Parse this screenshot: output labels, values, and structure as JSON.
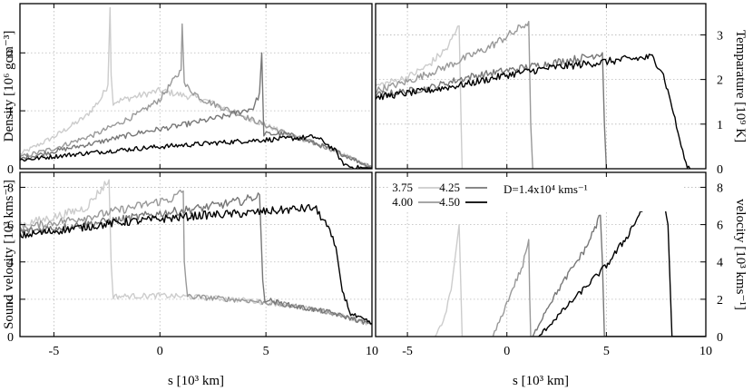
{
  "chart_data": {
    "type": "line",
    "layout": "2x2 panels, shared x axis",
    "series_styles": [
      {
        "label": "3.75",
        "color": "#cccccc"
      },
      {
        "label": "4.00",
        "color": "#999999"
      },
      {
        "label": "4.25",
        "color": "#777777"
      },
      {
        "label": "4.50",
        "color": "#000000"
      }
    ],
    "legend": {
      "placement": "top of bottom-right panel",
      "entries": [
        "3.75",
        "4.00",
        "4.25",
        "4.50"
      ],
      "note": "D=1.4x10⁴ kms⁻¹"
    },
    "xaxis": {
      "label": "s [10³ km]",
      "range": [
        -6.6,
        10
      ],
      "ticks": [
        -5,
        0,
        5,
        10
      ],
      "tick_labels": [
        "-5",
        "0",
        "5",
        "10"
      ]
    },
    "grid": "dotted, on",
    "panels": [
      {
        "id": "density",
        "position": "top-left",
        "ylabel": "Density [10⁶ gcm⁻³]",
        "y_axis_side": "left",
        "ylim": [
          0,
          2.85
        ],
        "yticks": [
          0,
          1,
          2
        ],
        "ytick_labels": [
          "0",
          "1",
          "2"
        ],
        "series": [
          {
            "label": "3.75",
            "x": [
              -6.6,
              -5,
              -3.5,
              -2.8,
              -2.45,
              -2.35,
              -2.3,
              -2.2,
              0,
              2,
              4,
              6,
              8,
              10
            ],
            "y": [
              0.25,
              0.55,
              0.9,
              1.2,
              1.45,
              2.78,
              1.6,
              1.15,
              1.35,
              1.2,
              0.9,
              0.6,
              0.35,
              0.02
            ]
          },
          {
            "label": "4.00",
            "x": [
              -6.6,
              -5,
              -3,
              -1,
              0,
              0.6,
              1,
              1.05,
              1.15,
              2,
              4,
              6,
              8,
              10
            ],
            "y": [
              0.2,
              0.35,
              0.6,
              0.95,
              1.2,
              1.5,
              1.7,
              2.5,
              1.45,
              1.2,
              0.9,
              0.6,
              0.35,
              0.02
            ]
          },
          {
            "label": "4.25",
            "x": [
              -6.6,
              -5,
              -3,
              -1,
              1,
              3,
              4.4,
              4.7,
              4.8,
              4.9,
              6,
              8,
              10
            ],
            "y": [
              0.17,
              0.3,
              0.45,
              0.62,
              0.75,
              0.9,
              1.05,
              1.3,
              2.0,
              0.6,
              0.6,
              0.35,
              0.02
            ]
          },
          {
            "label": "4.50",
            "x": [
              -6.6,
              -4,
              -2,
              0,
              2,
              4,
              6,
              7.3,
              7.8,
              8.3,
              8.6,
              9,
              10
            ],
            "y": [
              0.15,
              0.25,
              0.32,
              0.38,
              0.43,
              0.48,
              0.52,
              0.55,
              0.45,
              0.3,
              0.1,
              0.03,
              0.01
            ]
          }
        ]
      },
      {
        "id": "temperature",
        "position": "top-right",
        "ylabel": "Temparature [10⁹ K]",
        "y_axis_side": "right",
        "ylim": [
          0,
          3.7
        ],
        "yticks": [
          0,
          1,
          2,
          3
        ],
        "ytick_labels": [
          "0",
          "1",
          "2",
          "3"
        ],
        "series": [
          {
            "label": "3.75",
            "x": [
              -6.6,
              -5,
              -4,
              -3,
              -2.4,
              -2.3,
              -2.25
            ],
            "y": [
              1.85,
              2.05,
              2.3,
              2.7,
              3.2,
              1.0,
              0
            ]
          },
          {
            "label": "4.00",
            "x": [
              -6.6,
              -5,
              -3,
              -1,
              0.5,
              1.1,
              1.2,
              1.3
            ],
            "y": [
              1.75,
              1.95,
              2.3,
              2.7,
              3.1,
              3.3,
              1.0,
              0
            ]
          },
          {
            "label": "4.25",
            "x": [
              -6.6,
              -4,
              -2,
              0,
              2,
              4,
              4.8,
              4.9,
              5.0
            ],
            "y": [
              1.65,
              1.8,
              2.05,
              2.2,
              2.35,
              2.5,
              2.6,
              1.0,
              0
            ]
          },
          {
            "label": "4.50",
            "x": [
              -6.6,
              -4,
              -2,
              0,
              2,
              4,
              6,
              7.3,
              7.8,
              8.3,
              8.6,
              9.0,
              9.2
            ],
            "y": [
              1.6,
              1.75,
              1.9,
              2.1,
              2.25,
              2.35,
              2.45,
              2.5,
              2.2,
              1.4,
              0.8,
              0.1,
              0
            ]
          }
        ]
      },
      {
        "id": "sound_velocity",
        "position": "bottom-left",
        "ylabel": "Sound velocity [10³ kms⁻¹]",
        "y_axis_side": "left",
        "ylim": [
          0,
          8.8
        ],
        "yticks": [
          0,
          2,
          4,
          6,
          8
        ],
        "ytick_labels": [
          "0",
          "2",
          "4",
          "6",
          "8"
        ],
        "series": [
          {
            "label": "3.75",
            "x": [
              -6.6,
              -5,
              -3.5,
              -2.4,
              -2.3,
              -2.2,
              0,
              2,
              4,
              6,
              8,
              10
            ],
            "y": [
              6.0,
              6.4,
              6.9,
              8.4,
              4.0,
              2.15,
              2.2,
              2.1,
              1.95,
              1.7,
              1.3,
              0.65
            ]
          },
          {
            "label": "4.00",
            "x": [
              -6.6,
              -5,
              -3,
              -1,
              0.6,
              1.1,
              1.15,
              1.3,
              2,
              4,
              6,
              8,
              10
            ],
            "y": [
              5.8,
              6.1,
              6.5,
              7.0,
              7.4,
              7.8,
              4.0,
              2.15,
              2.1,
              1.95,
              1.7,
              1.3,
              0.65
            ]
          },
          {
            "label": "4.25",
            "x": [
              -6.6,
              -4,
              -2,
              0,
              2,
              4,
              4.7,
              4.85,
              4.95,
              6,
              8,
              10
            ],
            "y": [
              5.6,
              5.95,
              6.25,
              6.6,
              6.9,
              7.3,
              7.6,
              3.0,
              2.0,
              1.7,
              1.3,
              0.65
            ]
          },
          {
            "label": "4.50",
            "x": [
              -6.6,
              -4,
              -2,
              0,
              2,
              4,
              6,
              7.3,
              7.8,
              8.3,
              8.6,
              9.0,
              10
            ],
            "y": [
              5.4,
              5.8,
              6.1,
              6.3,
              6.5,
              6.6,
              6.8,
              6.9,
              6.1,
              4.8,
              2.5,
              1.2,
              0.7
            ]
          }
        ]
      },
      {
        "id": "velocity",
        "position": "bottom-right",
        "ylabel": "velocity [10³ kms⁻¹]",
        "y_axis_side": "right",
        "ylim": [
          0,
          8.8
        ],
        "yticks": [
          0,
          2,
          4,
          6,
          8
        ],
        "ytick_labels": [
          "0",
          "2",
          "4",
          "6",
          "8"
        ],
        "series": [
          {
            "label": "3.75",
            "x": [
              -3.6,
              -3.2,
              -2.8,
              -2.4,
              -2.3,
              -2.25,
              10
            ],
            "y": [
              0,
              0.8,
              2.5,
              6.0,
              2.0,
              0,
              0
            ]
          },
          {
            "label": "4.00",
            "x": [
              -0.7,
              -0.3,
              0.3,
              0.8,
              1.1,
              1.15,
              1.2,
              10
            ],
            "y": [
              0,
              1.0,
              2.6,
              3.8,
              5.2,
              2.0,
              0,
              0
            ]
          },
          {
            "label": "4.25",
            "x": [
              1.3,
              2.0,
              3.0,
              4.0,
              4.7,
              4.8,
              4.9,
              10
            ],
            "y": [
              0,
              1.5,
              3.2,
              4.8,
              6.5,
              4.0,
              0,
              0
            ]
          },
          {
            "label": "4.50",
            "x": [
              1.6,
              3,
              5,
              6,
              7,
              7.4,
              7.8,
              8.1,
              8.2,
              8.3,
              10
            ],
            "y": [
              0,
              1.6,
              3.8,
              5.3,
              7.2,
              8.2,
              7.8,
              6.0,
              3.0,
              0,
              0
            ]
          }
        ]
      }
    ]
  }
}
